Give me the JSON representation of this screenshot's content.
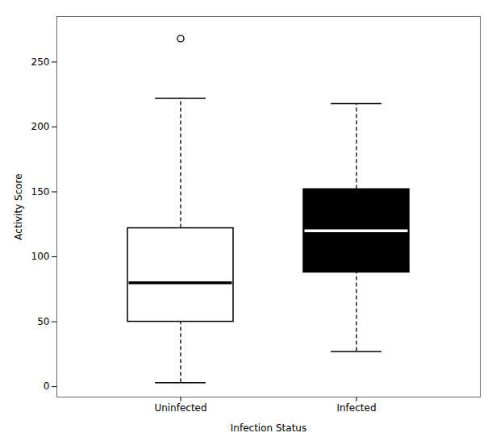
{
  "chart_data": {
    "type": "box",
    "categories": [
      "Uninfected",
      "Infected"
    ],
    "median": [
      80,
      120
    ],
    "q1": [
      50,
      88
    ],
    "q3": [
      122,
      152
    ],
    "whisker_low": [
      3,
      27
    ],
    "whisker_high": [
      222,
      218
    ],
    "outliers": [
      [
        268
      ],
      []
    ],
    "colors": [
      "white",
      "black"
    ],
    "xlabel": "Infection Status",
    "ylabel": "Activity Score",
    "ylim": [
      -8,
      285
    ],
    "yticks": [
      0,
      50,
      100,
      150,
      200,
      250
    ],
    "grid": false
  }
}
